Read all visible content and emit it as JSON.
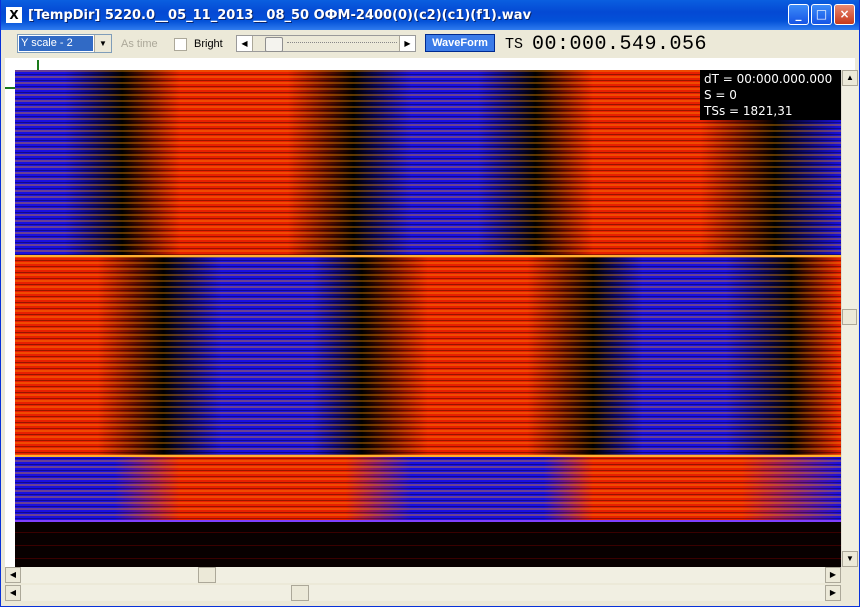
{
  "window": {
    "title": "[TempDir] 5220.0__05_11_2013__08_50 ОФМ-2400(0)(c2)(c1)(f1).wav",
    "app_icon_glyph": "X",
    "minimize_glyph": "_",
    "maximize_glyph": "□",
    "close_glyph": "×"
  },
  "toolbar": {
    "yscale_value": "Y scale - 2",
    "combo_arrow": "▼",
    "as_time_label": "As time",
    "bright_label": "Bright",
    "trackbar_left_arrow": "◀",
    "trackbar_right_arrow": "▶",
    "waveform_label": "WaveForm",
    "ts_label": "TS",
    "ts_value": "00:000.549.056"
  },
  "overlay": {
    "dt": "dT = 00:000.000.000",
    "s": "S = 0",
    "tss": "TSs = 1821,31"
  },
  "scrollbars": {
    "up_arrow": "▲",
    "down_arrow": "▼",
    "left_arrow": "◀",
    "right_arrow": "▶"
  },
  "colors": {
    "spectro_red": "#E82000",
    "spectro_orange": "#FF9A00",
    "spectro_blue": "#1A10E0",
    "spectro_black": "#000000"
  }
}
